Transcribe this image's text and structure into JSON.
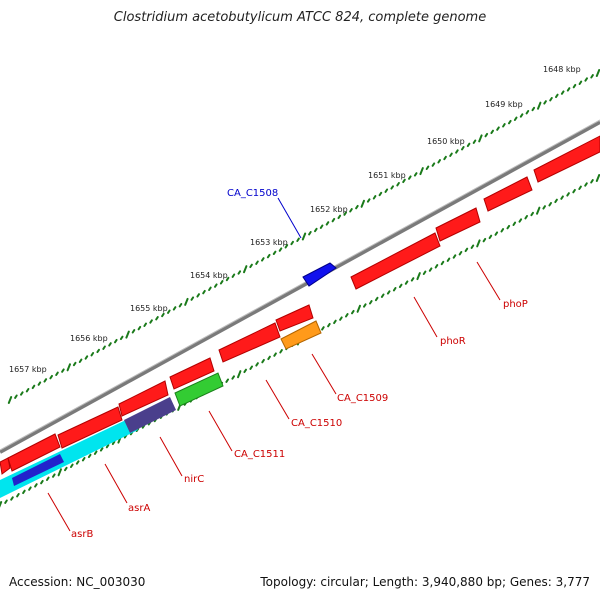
{
  "title": "Clostridium acetobutylicum ATCC 824, complete genome",
  "accession": "Accession: NC_003030",
  "topology": "Topology: circular; Length: 3,940,880 bp; Genes: 3,777",
  "colors": {
    "backbone": "#777777",
    "gc_ticks": "#1a7a1a",
    "gene_forward": "#ee0000",
    "label_red": "#cc0000",
    "label_blue": "#0000cc"
  },
  "scale_labels": [
    "1648 kbp",
    "1649 kbp",
    "1650 kbp",
    "1651 kbp",
    "1652 kbp",
    "1653 kbp",
    "1654 kbp",
    "1655 kbp",
    "1656 kbp",
    "1657 kbp"
  ],
  "gene_labels": [
    "CA_C1508",
    "phoP",
    "phoR",
    "CA_C1509",
    "CA_C1510",
    "CA_C1511",
    "nirC",
    "asrA",
    "asrB"
  ]
}
